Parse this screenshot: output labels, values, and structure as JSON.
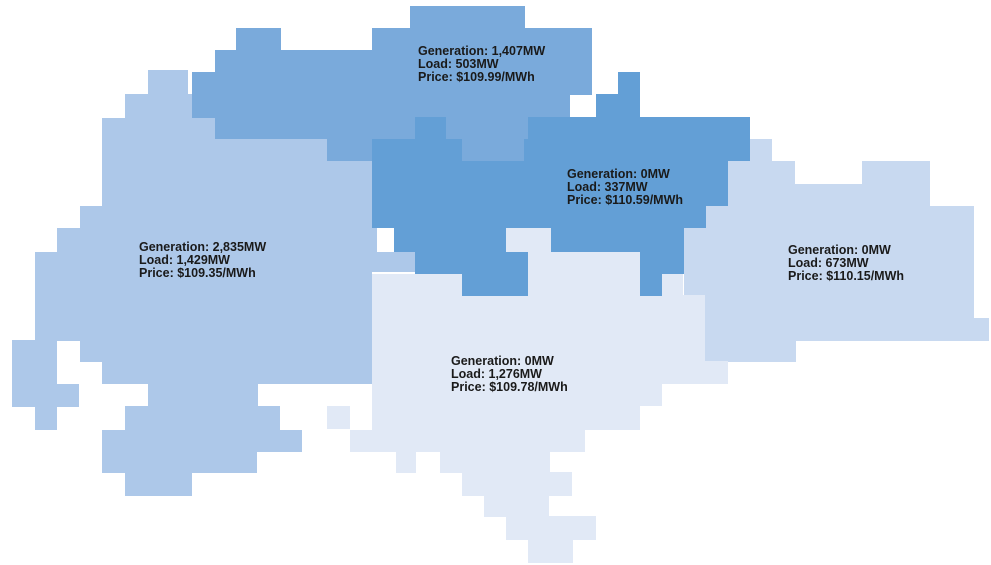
{
  "colors": {
    "north": "#7aaadb",
    "central": "#639fd6",
    "west": "#adc8e9",
    "east": "#c8d9f0",
    "south": "#e1e9f6",
    "text": "#1a1a1a"
  },
  "regions": {
    "north": {
      "generation": "Generation: 1,407MW",
      "load": "Load: 503MW",
      "price": "Price: $109.99/MWh"
    },
    "central": {
      "generation": "Generation: 0MW",
      "load": "Load: 337MW",
      "price": "Price: $110.59/MWh"
    },
    "west": {
      "generation": "Generation: 2,835MW",
      "load": "Load: 1,429MW",
      "price": "Price: $109.35/MWh"
    },
    "east": {
      "generation": "Generation: 0MW",
      "load": "Load: 673MW",
      "price": "Price: $110.15/MWh"
    },
    "south": {
      "generation": "Generation: 0MW",
      "load": "Load: 1,276MW",
      "price": "Price: $109.78/MWh"
    }
  }
}
